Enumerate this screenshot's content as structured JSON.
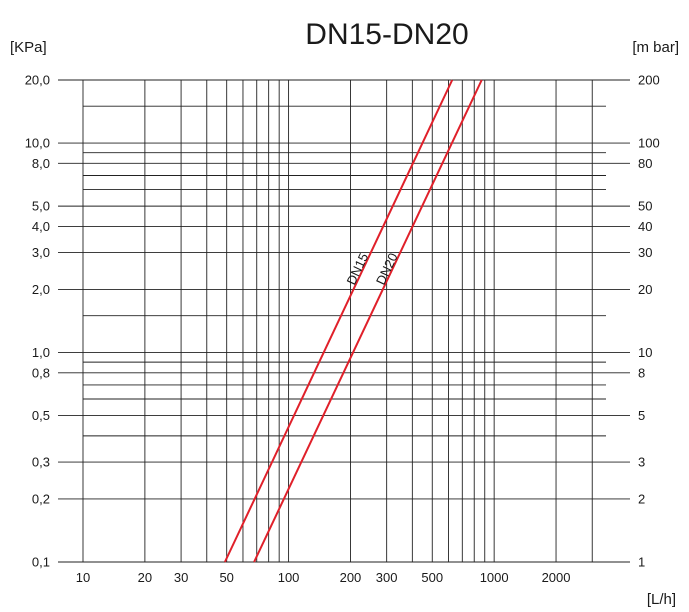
{
  "chart_data": {
    "type": "line",
    "title": "DN15-DN20",
    "xlabel": "[L/h]",
    "ylabel_left": "[KPa]",
    "ylabel_right": "[m bar]",
    "x_scale": "log",
    "y_scale": "log",
    "xlim": [
      10,
      3500
    ],
    "ylim": [
      0.1,
      20.0
    ],
    "grid": true,
    "x_ticks": [
      {
        "value": 10,
        "label": "10"
      },
      {
        "value": 20,
        "label": "20"
      },
      {
        "value": 30,
        "label": "30"
      },
      {
        "value": 50,
        "label": "50"
      },
      {
        "value": 100,
        "label": "100"
      },
      {
        "value": 200,
        "label": "200"
      },
      {
        "value": 300,
        "label": "300"
      },
      {
        "value": 500,
        "label": "500"
      },
      {
        "value": 1000,
        "label": "1000"
      },
      {
        "value": 2000,
        "label": "2000"
      }
    ],
    "x_grid": [
      10,
      20,
      30,
      40,
      50,
      60,
      70,
      80,
      90,
      100,
      200,
      300,
      400,
      500,
      600,
      700,
      800,
      900,
      1000,
      2000,
      3000
    ],
    "y_ticks_left": [
      {
        "value": 0.1,
        "label": "0,1"
      },
      {
        "value": 0.2,
        "label": "0,2"
      },
      {
        "value": 0.3,
        "label": "0,3"
      },
      {
        "value": 0.5,
        "label": "0,5"
      },
      {
        "value": 0.8,
        "label": "0,8"
      },
      {
        "value": 1.0,
        "label": "1,0"
      },
      {
        "value": 2.0,
        "label": "2,0"
      },
      {
        "value": 3.0,
        "label": "3,0"
      },
      {
        "value": 4.0,
        "label": "4,0"
      },
      {
        "value": 5.0,
        "label": "5,0"
      },
      {
        "value": 8.0,
        "label": "8,0"
      },
      {
        "value": 10.0,
        "label": "10,0"
      },
      {
        "value": 20.0,
        "label": "20,0"
      }
    ],
    "y_ticks_right": [
      {
        "value": 0.1,
        "label": "1"
      },
      {
        "value": 0.2,
        "label": "2"
      },
      {
        "value": 0.3,
        "label": "3"
      },
      {
        "value": 0.5,
        "label": "5"
      },
      {
        "value": 0.8,
        "label": "8"
      },
      {
        "value": 1.0,
        "label": "10"
      },
      {
        "value": 2.0,
        "label": "20"
      },
      {
        "value": 3.0,
        "label": "30"
      },
      {
        "value": 4.0,
        "label": "40"
      },
      {
        "value": 5.0,
        "label": "50"
      },
      {
        "value": 8.0,
        "label": "80"
      },
      {
        "value": 10.0,
        "label": "100"
      },
      {
        "value": 20.0,
        "label": "200"
      }
    ],
    "y_grid": [
      0.1,
      0.2,
      0.3,
      0.4,
      0.5,
      0.6,
      0.7,
      0.8,
      0.9,
      1.0,
      1.5,
      2.0,
      3.0,
      4.0,
      5.0,
      6.0,
      7.0,
      8.0,
      9.0,
      10.0,
      15.0,
      20.0
    ],
    "series": [
      {
        "name": "DN15",
        "x": [
          49,
          625
        ],
        "y": [
          0.1,
          20.0
        ],
        "color": "#e0202a"
      },
      {
        "name": "DN20",
        "x": [
          68,
          870
        ],
        "y": [
          0.1,
          20.0
        ],
        "color": "#e0202a"
      }
    ]
  }
}
